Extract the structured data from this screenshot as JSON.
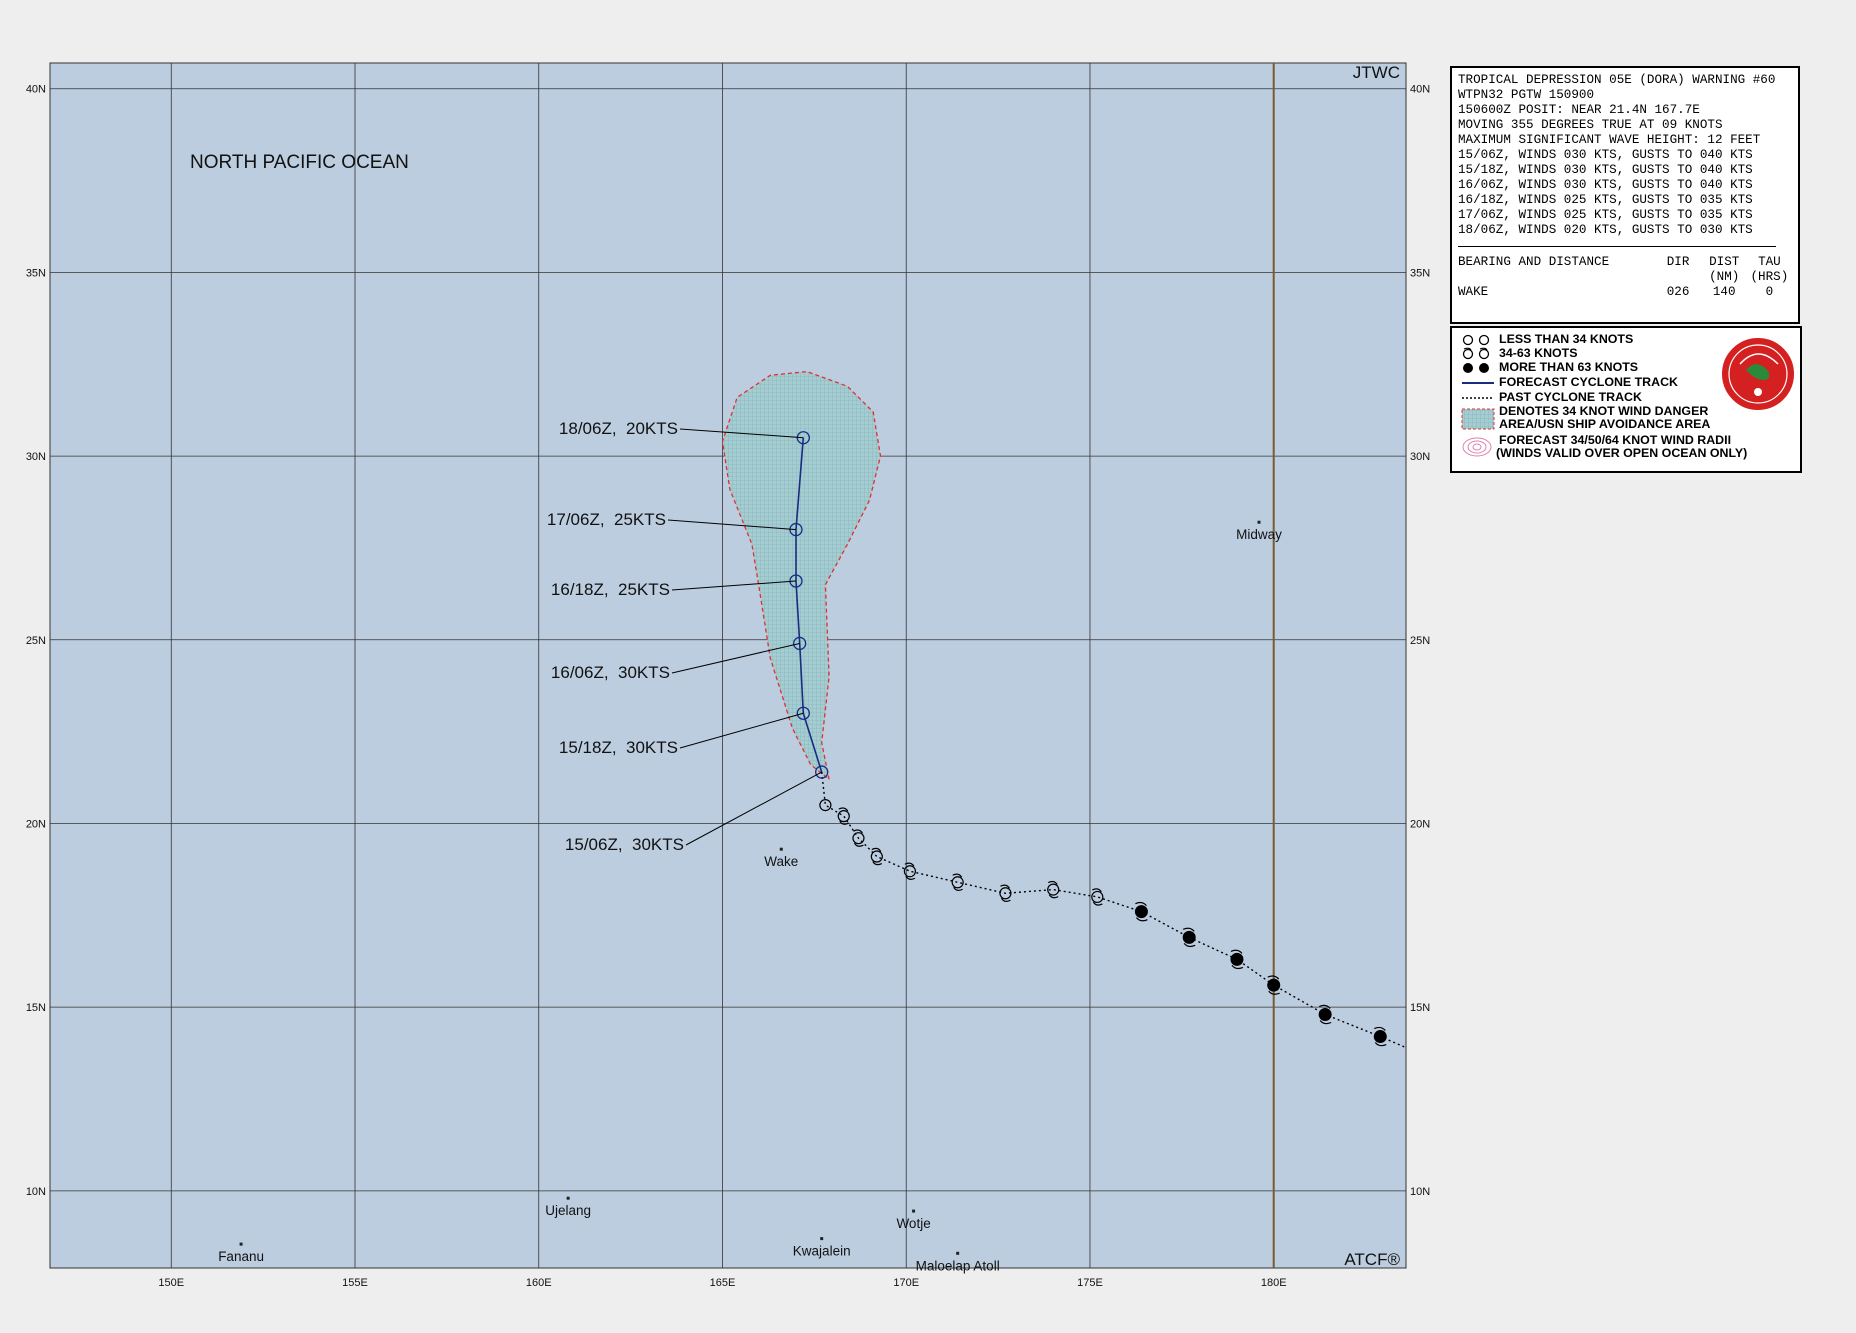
{
  "map": {
    "region_label": "NORTH PACIFIC OCEAN",
    "agency": "JTWC",
    "footer_brand": "ATCF®",
    "lat_labels": [
      "40N",
      "35N",
      "30N",
      "25N",
      "20N",
      "15N",
      "10N"
    ],
    "lon_labels": [
      "150E",
      "155E",
      "160E",
      "165E",
      "170E",
      "175E",
      "180E"
    ],
    "lat_range": [
      7.9,
      40.7
    ],
    "lon_range": [
      146.7,
      183.6
    ],
    "dateline_lon": 180,
    "colors": {
      "ocean": "#bccde0",
      "grid": "#333333",
      "dateline": "#7a5a30",
      "danger_fill": "#9fc7cc",
      "danger_edge": "#e03030",
      "track": "#1a2b80"
    }
  },
  "places": [
    {
      "name": "Midway",
      "lat": 28.2,
      "lon": 179.6
    },
    {
      "name": "Wake",
      "lat": 19.3,
      "lon": 166.6
    },
    {
      "name": "Ujelang",
      "lat": 9.8,
      "lon": 160.8
    },
    {
      "name": "Wotje",
      "lat": 9.45,
      "lon": 170.2
    },
    {
      "name": "Kwajalein",
      "lat": 8.7,
      "lon": 167.7
    },
    {
      "name": "Maloelap Atoll",
      "lat": 8.3,
      "lon": 171.4
    },
    {
      "name": "Fananu",
      "lat": 8.55,
      "lon": 151.9
    }
  ],
  "forecast_points": [
    {
      "label": "15/06Z,  30KTS",
      "lat": 21.4,
      "lon": 167.7
    },
    {
      "label": "15/18Z,  30KTS",
      "lat": 23.0,
      "lon": 167.2
    },
    {
      "label": "16/06Z,  30KTS",
      "lat": 24.9,
      "lon": 167.1
    },
    {
      "label": "16/18Z,  25KTS",
      "lat": 26.6,
      "lon": 167.0
    },
    {
      "label": "17/06Z,  25KTS",
      "lat": 28.0,
      "lon": 167.0
    },
    {
      "label": "18/06Z,  20KTS",
      "lat": 30.5,
      "lon": 167.2
    }
  ],
  "past_track": [
    {
      "lat": 20.5,
      "lon": 167.8,
      "intensity": "lt34"
    },
    {
      "lat": 20.2,
      "lon": 168.3,
      "intensity": "34-63"
    },
    {
      "lat": 19.6,
      "lon": 168.7,
      "intensity": "34-63"
    },
    {
      "lat": 19.1,
      "lon": 169.2,
      "intensity": "34-63"
    },
    {
      "lat": 18.7,
      "lon": 170.1,
      "intensity": "34-63"
    },
    {
      "lat": 18.4,
      "lon": 171.4,
      "intensity": "34-63"
    },
    {
      "lat": 18.1,
      "lon": 172.7,
      "intensity": "34-63"
    },
    {
      "lat": 18.2,
      "lon": 174.0,
      "intensity": "34-63"
    },
    {
      "lat": 18.0,
      "lon": 175.2,
      "intensity": "34-63"
    },
    {
      "lat": 17.6,
      "lon": 176.4,
      "intensity": "gt63"
    },
    {
      "lat": 16.9,
      "lon": 177.7,
      "intensity": "gt63"
    },
    {
      "lat": 16.3,
      "lon": 179.0,
      "intensity": "gt63"
    },
    {
      "lat": 15.6,
      "lon": 180.0,
      "intensity": "gt63"
    },
    {
      "lat": 14.8,
      "lon": 181.4,
      "intensity": "gt63"
    },
    {
      "lat": 14.2,
      "lon": 182.9,
      "intensity": "gt63"
    },
    {
      "lat": 13.9,
      "lon": 183.6,
      "intensity": "none"
    }
  ],
  "danger_area": [
    {
      "lat": 21.2,
      "lon": 167.9
    },
    {
      "lat": 22.2,
      "lon": 167.7
    },
    {
      "lat": 24.0,
      "lon": 167.9
    },
    {
      "lat": 26.5,
      "lon": 167.8
    },
    {
      "lat": 27.6,
      "lon": 168.4
    },
    {
      "lat": 28.8,
      "lon": 169.0
    },
    {
      "lat": 30.0,
      "lon": 169.3
    },
    {
      "lat": 31.2,
      "lon": 169.1
    },
    {
      "lat": 31.9,
      "lon": 168.4
    },
    {
      "lat": 32.3,
      "lon": 167.3
    },
    {
      "lat": 32.2,
      "lon": 166.3
    },
    {
      "lat": 31.6,
      "lon": 165.4
    },
    {
      "lat": 30.4,
      "lon": 165.0
    },
    {
      "lat": 29.1,
      "lon": 165.2
    },
    {
      "lat": 27.6,
      "lon": 165.8
    },
    {
      "lat": 26.4,
      "lon": 166.0
    },
    {
      "lat": 24.5,
      "lon": 166.3
    },
    {
      "lat": 22.6,
      "lon": 166.9
    },
    {
      "lat": 21.6,
      "lon": 167.4
    }
  ],
  "warning": {
    "lines": [
      "TROPICAL DEPRESSION 05E (DORA) WARNING #60",
      "WTPN32 PGTW 150900",
      "150600Z POSIT: NEAR 21.4N 167.7E",
      "MOVING 355 DEGREES TRUE AT 09 KNOTS",
      "MAXIMUM SIGNIFICANT WAVE HEIGHT: 12 FEET",
      "15/06Z, WINDS 030 KTS, GUSTS TO 040 KTS",
      "15/18Z, WINDS 030 KTS, GUSTS TO 040 KTS",
      "16/06Z, WINDS 030 KTS, GUSTS TO 040 KTS",
      "16/18Z, WINDS 025 KTS, GUSTS TO 035 KTS",
      "17/06Z, WINDS 025 KTS, GUSTS TO 035 KTS",
      "18/06Z, WINDS 020 KTS, GUSTS TO 030 KTS"
    ],
    "table_header": {
      "c1": "BEARING AND DISTANCE",
      "c2": "DIR",
      "c3": "DIST",
      "c4": "TAU"
    },
    "table_header2": {
      "c3": "(NM)",
      "c4": "(HRS)"
    },
    "table_row": {
      "c1": "WAKE",
      "c2": "026",
      "c3": "140",
      "c4": "0"
    }
  },
  "legend": {
    "items": [
      "LESS THAN 34 KNOTS",
      "34-63 KNOTS",
      "MORE THAN 63 KNOTS",
      "FORECAST CYCLONE TRACK",
      "PAST CYCLONE TRACK",
      "DENOTES 34 KNOT WIND DANGER",
      "AREA/USN SHIP AVOIDANCE AREA",
      "FORECAST 34/50/64 KNOT WIND RADII",
      "(WINDS VALID OVER OPEN OCEAN ONLY)"
    ]
  }
}
